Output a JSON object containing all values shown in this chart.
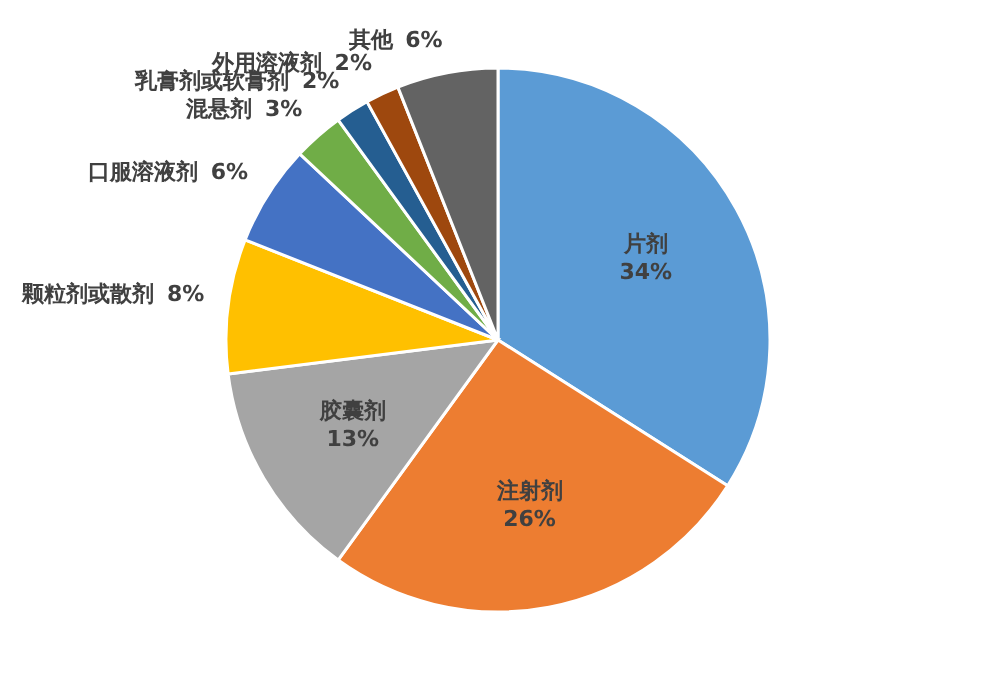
{
  "chart_data": {
    "type": "pie",
    "categories": [
      "片剂",
      "注射剂",
      "胶囊剂",
      "颗粒剂或散剂",
      "口服溶液剂",
      "混悬剂",
      "乳膏剂或软膏剂",
      "外用溶液剂",
      "其他"
    ],
    "values": [
      34,
      26,
      13,
      8,
      6,
      3,
      2,
      2,
      6
    ],
    "colors": [
      "#5b9bd5",
      "#ed7d31",
      "#a5a5a5",
      "#ffc000",
      "#4472c4",
      "#70ad47",
      "#255e91",
      "#9e480e",
      "#636363"
    ],
    "value_labels": [
      "34%",
      "26%",
      "13%",
      "8%",
      "6%",
      "3%",
      "2%",
      "2%",
      "6%"
    ]
  }
}
